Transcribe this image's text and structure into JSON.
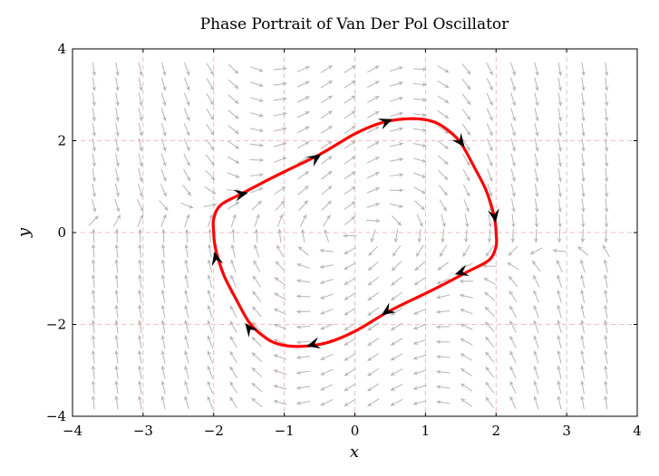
{
  "chart_data": {
    "type": "phase-portrait",
    "title": "Phase Portrait of Van Der Pol Oscillator",
    "xlabel": "x",
    "ylabel": "y",
    "xlim": [
      -4,
      4
    ],
    "ylim": [
      -4,
      4
    ],
    "xticks": [
      -4,
      -3,
      -2,
      -1,
      0,
      1,
      2,
      3,
      4
    ],
    "yticks": [
      -4,
      -2,
      0,
      2,
      4
    ],
    "grid": "dashed",
    "mu": 1,
    "vector_field": {
      "system": "dx/dt = y, dy/dt = mu*(1 - x^2)*y - x",
      "spacing": 0.33,
      "xrange": [
        -3.7,
        3.7
      ],
      "yrange": [
        -3.7,
        3.7
      ]
    },
    "limit_cycle": {
      "color": "#ff0000",
      "points": [
        [
          2.0,
          0.0
        ],
        [
          1.99,
          0.2
        ],
        [
          1.95,
          0.5
        ],
        [
          1.85,
          0.95
        ],
        [
          1.7,
          1.4
        ],
        [
          1.5,
          1.95
        ],
        [
          1.3,
          2.25
        ],
        [
          1.1,
          2.42
        ],
        [
          0.8,
          2.48
        ],
        [
          0.4,
          2.4
        ],
        [
          0.0,
          2.15
        ],
        [
          -0.5,
          1.7
        ],
        [
          -1.1,
          1.25
        ],
        [
          -1.6,
          0.85
        ],
        [
          -1.9,
          0.6
        ],
        [
          -2.0,
          0.3
        ],
        [
          -2.0,
          0.0
        ],
        [
          -1.99,
          -0.2
        ],
        [
          -1.95,
          -0.5
        ],
        [
          -1.85,
          -0.95
        ],
        [
          -1.7,
          -1.4
        ],
        [
          -1.5,
          -1.95
        ],
        [
          -1.3,
          -2.25
        ],
        [
          -1.1,
          -2.42
        ],
        [
          -0.8,
          -2.48
        ],
        [
          -0.4,
          -2.4
        ],
        [
          0.0,
          -2.15
        ],
        [
          0.5,
          -1.7
        ],
        [
          1.1,
          -1.25
        ],
        [
          1.6,
          -0.85
        ],
        [
          1.9,
          -0.6
        ],
        [
          2.0,
          -0.3
        ],
        [
          2.0,
          0.0
        ]
      ],
      "arrow_markers": [
        {
          "x": 0.45,
          "y": 2.42,
          "dir": "right"
        },
        {
          "x": -0.55,
          "y": 1.63,
          "dir": "up-right"
        },
        {
          "x": -1.6,
          "y": 0.84,
          "dir": "up-right"
        },
        {
          "x": 1.5,
          "y": 1.97,
          "dir": "down"
        },
        {
          "x": 1.98,
          "y": 0.35,
          "dir": "down"
        },
        {
          "x": 1.5,
          "y": -0.87,
          "dir": "left"
        },
        {
          "x": 0.45,
          "y": -1.72,
          "dir": "left"
        },
        {
          "x": -0.6,
          "y": -2.44,
          "dir": "left"
        },
        {
          "x": -1.5,
          "y": -2.08,
          "dir": "up-left"
        },
        {
          "x": -1.97,
          "y": -0.55,
          "dir": "up"
        }
      ]
    }
  }
}
